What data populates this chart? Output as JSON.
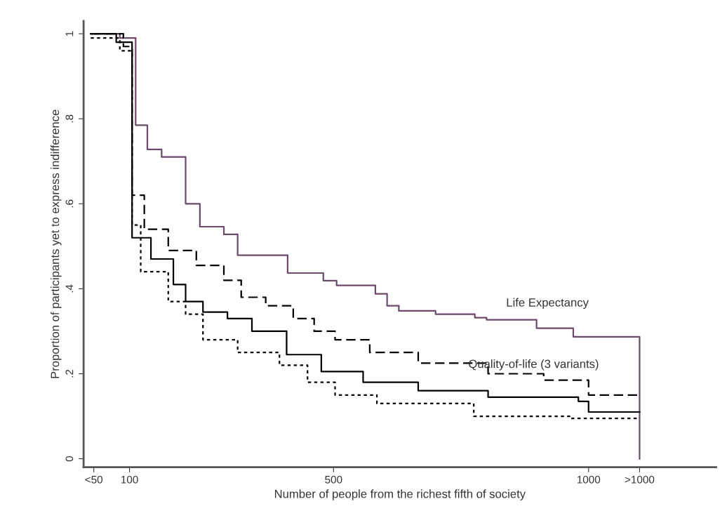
{
  "chart_data": {
    "type": "step",
    "xlabel": "Number of people from the richest fifth of society",
    "ylabel": "Proportion of participants yet to express indifference",
    "xlim": [
      10,
      1250
    ],
    "ylim": [
      -0.02,
      1.03
    ],
    "xticks": [
      {
        "value": 30,
        "label": "<50"
      },
      100,
      500,
      1000,
      {
        "value": 1100,
        "label": ">1000"
      }
    ],
    "yticks": [
      {
        "value": 0,
        "label": "0"
      },
      {
        "value": 0.2,
        "label": ".2"
      },
      {
        "value": 0.4,
        "label": ".4"
      },
      {
        "value": 0.6,
        "label": ".6"
      },
      {
        "value": 0.8,
        "label": ".8"
      },
      {
        "value": 1,
        "label": "1"
      }
    ],
    "grid": false,
    "series": [
      {
        "color": "#6b4a6b",
        "line_style": "solid",
        "x": [
          24,
          81,
          112,
          135,
          163,
          210,
          238,
          285,
          312,
          410,
          480,
          506,
          582,
          605,
          628,
          700,
          777,
          800,
          898,
          970,
          1100
        ],
        "values": [
          1.0,
          0.99,
          0.785,
          0.728,
          0.71,
          0.6,
          0.546,
          0.528,
          0.479,
          0.437,
          0.419,
          0.408,
          0.388,
          0.36,
          0.348,
          0.34,
          0.332,
          0.327,
          0.307,
          0.287,
          0
        ]
      },
      {
        "color": "#000000",
        "line_style": "solid",
        "x": [
          24,
          74,
          105,
          142,
          186,
          210,
          244,
          292,
          340,
          408,
          476,
          558,
          666,
          803,
          980,
          1000,
          1100
        ],
        "values": [
          1.0,
          0.98,
          0.52,
          0.47,
          0.41,
          0.37,
          0.345,
          0.33,
          0.3,
          0.245,
          0.205,
          0.18,
          0.16,
          0.145,
          0.135,
          0.11,
          0.11
        ]
      },
      {
        "color": "#000000",
        "line_style": "dashed",
        "x": [
          24,
          88,
          105,
          129,
          176,
          231,
          285,
          319,
          367,
          421,
          462,
          503,
          571,
          666,
          803,
          912,
          1000,
          1100
        ],
        "values": [
          1.0,
          0.97,
          0.62,
          0.54,
          0.49,
          0.455,
          0.42,
          0.38,
          0.36,
          0.33,
          0.3,
          0.28,
          0.25,
          0.225,
          0.2,
          0.185,
          0.15,
          0.15
        ]
      },
      {
        "color": "#000000",
        "line_style": "dotted",
        "x": [
          24,
          81,
          105,
          122,
          176,
          210,
          244,
          312,
          394,
          449,
          503,
          585,
          775,
          966,
          1100
        ],
        "values": [
          0.99,
          0.96,
          0.55,
          0.44,
          0.37,
          0.34,
          0.28,
          0.25,
          0.22,
          0.18,
          0.15,
          0.13,
          0.1,
          0.095,
          0.095
        ]
      }
    ],
    "annotations": [
      "Life Expectancy",
      "Quality-of-life (3 variants)"
    ]
  }
}
